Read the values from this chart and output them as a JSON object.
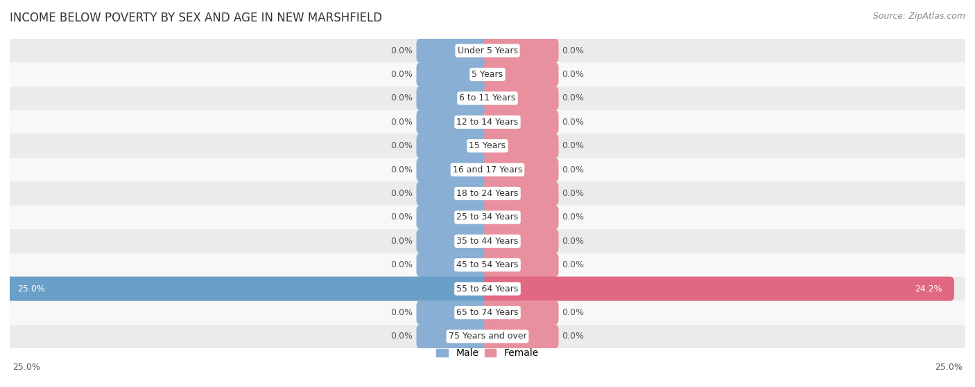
{
  "title": "INCOME BELOW POVERTY BY SEX AND AGE IN NEW MARSHFIELD",
  "source": "Source: ZipAtlas.com",
  "categories": [
    "Under 5 Years",
    "5 Years",
    "6 to 11 Years",
    "12 to 14 Years",
    "15 Years",
    "16 and 17 Years",
    "18 to 24 Years",
    "25 to 34 Years",
    "35 to 44 Years",
    "45 to 54 Years",
    "55 to 64 Years",
    "65 to 74 Years",
    "75 Years and over"
  ],
  "male_values": [
    0.0,
    0.0,
    0.0,
    0.0,
    0.0,
    0.0,
    0.0,
    0.0,
    0.0,
    0.0,
    25.0,
    0.0,
    0.0
  ],
  "female_values": [
    0.0,
    0.0,
    0.0,
    0.0,
    0.0,
    0.0,
    0.0,
    0.0,
    0.0,
    0.0,
    24.2,
    0.0,
    0.0
  ],
  "male_color": "#89afd4",
  "female_color": "#e8909e",
  "male_color_big": "#6a9fc8",
  "female_color_big": "#e06882",
  "male_label": "Male",
  "female_label": "Female",
  "xlim": 25.0,
  "default_bar_width": 3.5,
  "bar_height": 0.58,
  "row_bg_even": "#ebebeb",
  "row_bg_odd": "#f8f8f8",
  "label_color_default": "#555555",
  "label_color_bar": "#ffffff",
  "title_fontsize": 12,
  "label_fontsize": 9,
  "category_fontsize": 9,
  "source_fontsize": 9
}
